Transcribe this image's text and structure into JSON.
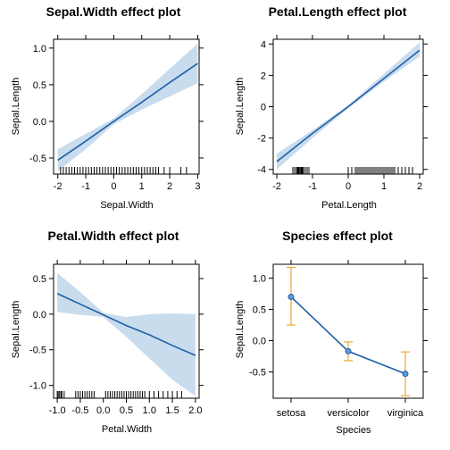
{
  "colors": {
    "line": "#1f5fa8",
    "band": "#c9dcee",
    "rug": "#000000",
    "errorbar": "#f0a830",
    "point_fill": "#5b9bd5"
  },
  "chart_data": [
    {
      "type": "line",
      "title": "Sepal.Width effect plot",
      "xlabel": "Sepal.Width",
      "ylabel": "Sepal.Length",
      "xlim": [
        -2.15,
        3.05
      ],
      "ylim": [
        -0.72,
        1.12
      ],
      "xticks": [
        "-2",
        "-1",
        "0",
        "1",
        "2",
        "3"
      ],
      "yticks": [
        "-0.5",
        "0.0",
        "0.5",
        "1.0"
      ],
      "x": [
        -2,
        -1,
        0,
        1,
        2,
        3
      ],
      "y": [
        -0.53,
        -0.27,
        0.0,
        0.26,
        0.53,
        0.79
      ],
      "lower": [
        -0.68,
        -0.38,
        -0.04,
        0.16,
        0.34,
        0.52
      ],
      "upper": [
        -0.38,
        -0.17,
        0.04,
        0.37,
        0.72,
        1.06
      ],
      "rug": [
        -1.9,
        -1.8,
        -1.7,
        -1.6,
        -1.5,
        -1.4,
        -1.3,
        -1.2,
        -1.1,
        -1.0,
        -0.9,
        -0.8,
        -0.7,
        -0.6,
        -0.5,
        -0.4,
        -0.3,
        -0.2,
        -0.1,
        0.0,
        0.1,
        0.2,
        0.3,
        0.4,
        0.5,
        0.6,
        0.7,
        0.8,
        0.9,
        1.0,
        1.1,
        1.2,
        1.3,
        1.4,
        1.5,
        1.6,
        1.8,
        2.0,
        2.4,
        2.6
      ],
      "grid": false
    },
    {
      "type": "line",
      "title": "Petal.Length effect plot",
      "xlabel": "Petal.Length",
      "ylabel": "Sepal.Length",
      "xlim": [
        -2.1,
        2.1
      ],
      "ylim": [
        -4.3,
        4.3
      ],
      "xticks": [
        "-2",
        "-1",
        "0",
        "1",
        "2"
      ],
      "yticks": [
        "-4",
        "-2",
        "0",
        "2",
        "4"
      ],
      "x": [
        -2,
        -1,
        0,
        1,
        2
      ],
      "y": [
        -3.5,
        -1.7,
        0.0,
        1.8,
        3.6
      ],
      "lower": [
        -4.0,
        -2.0,
        -0.1,
        1.6,
        3.2
      ],
      "upper": [
        -3.0,
        -1.5,
        0.1,
        2.1,
        4.1
      ],
      "rug": [
        -1.55,
        -1.5,
        -1.45,
        -1.42,
        -1.4,
        -1.38,
        -1.35,
        -1.32,
        -1.3,
        -1.28,
        -1.25,
        -1.2,
        -1.15,
        -1.1,
        0.0,
        0.1,
        0.2,
        0.25,
        0.3,
        0.35,
        0.4,
        0.45,
        0.5,
        0.55,
        0.6,
        0.65,
        0.7,
        0.75,
        0.8,
        0.85,
        0.9,
        0.95,
        1.0,
        1.05,
        1.1,
        1.15,
        1.2,
        1.25,
        1.3,
        1.4,
        1.5,
        1.6,
        1.7,
        1.8
      ],
      "grid": false
    },
    {
      "type": "line",
      "title": "Petal.Width effect plot",
      "xlabel": "Petal.Width",
      "ylabel": "Sepal.Length",
      "xlim": [
        -1.08,
        2.08
      ],
      "ylim": [
        -1.18,
        0.7
      ],
      "xticks": [
        "-1.0",
        "-0.5",
        "0.0",
        "0.5",
        "1.0",
        "1.5",
        "2.0"
      ],
      "yticks": [
        "-1.0",
        "-0.5",
        "0.0",
        "0.5"
      ],
      "x": [
        -1.0,
        -0.5,
        0.0,
        0.5,
        1.0,
        1.5,
        2.0
      ],
      "y": [
        0.29,
        0.14,
        -0.01,
        -0.16,
        -0.29,
        -0.44,
        -0.58
      ],
      "lower": [
        0.03,
        -0.01,
        -0.04,
        -0.32,
        -0.62,
        -0.92,
        -1.15
      ],
      "upper": [
        0.58,
        0.31,
        0.02,
        -0.04,
        0.0,
        0.01,
        0.0
      ],
      "rug": [
        -1.0,
        -0.98,
        -0.95,
        -0.92,
        -0.9,
        -0.85,
        -0.6,
        -0.55,
        -0.5,
        -0.45,
        -0.4,
        -0.35,
        -0.3,
        -0.25,
        -0.2,
        0.05,
        0.1,
        0.15,
        0.2,
        0.25,
        0.3,
        0.35,
        0.4,
        0.45,
        0.5,
        0.55,
        0.6,
        0.65,
        0.7,
        0.75,
        0.8,
        0.85,
        0.9,
        1.0,
        1.1,
        1.2,
        1.3,
        1.4,
        1.5,
        1.6,
        1.7
      ],
      "grid": false
    },
    {
      "type": "line",
      "title": "Species effect plot",
      "xlabel": "Species",
      "ylabel": "Sepal.Length",
      "categories": [
        "setosa",
        "versicolor",
        "virginica"
      ],
      "ylim": [
        -0.92,
        1.22
      ],
      "yticks": [
        "-0.5",
        "0.0",
        "0.5",
        "1.0"
      ],
      "y": [
        0.7,
        -0.17,
        -0.53
      ],
      "lower": [
        0.25,
        -0.32,
        -0.88
      ],
      "upper": [
        1.17,
        -0.02,
        -0.18
      ],
      "grid": false
    }
  ]
}
